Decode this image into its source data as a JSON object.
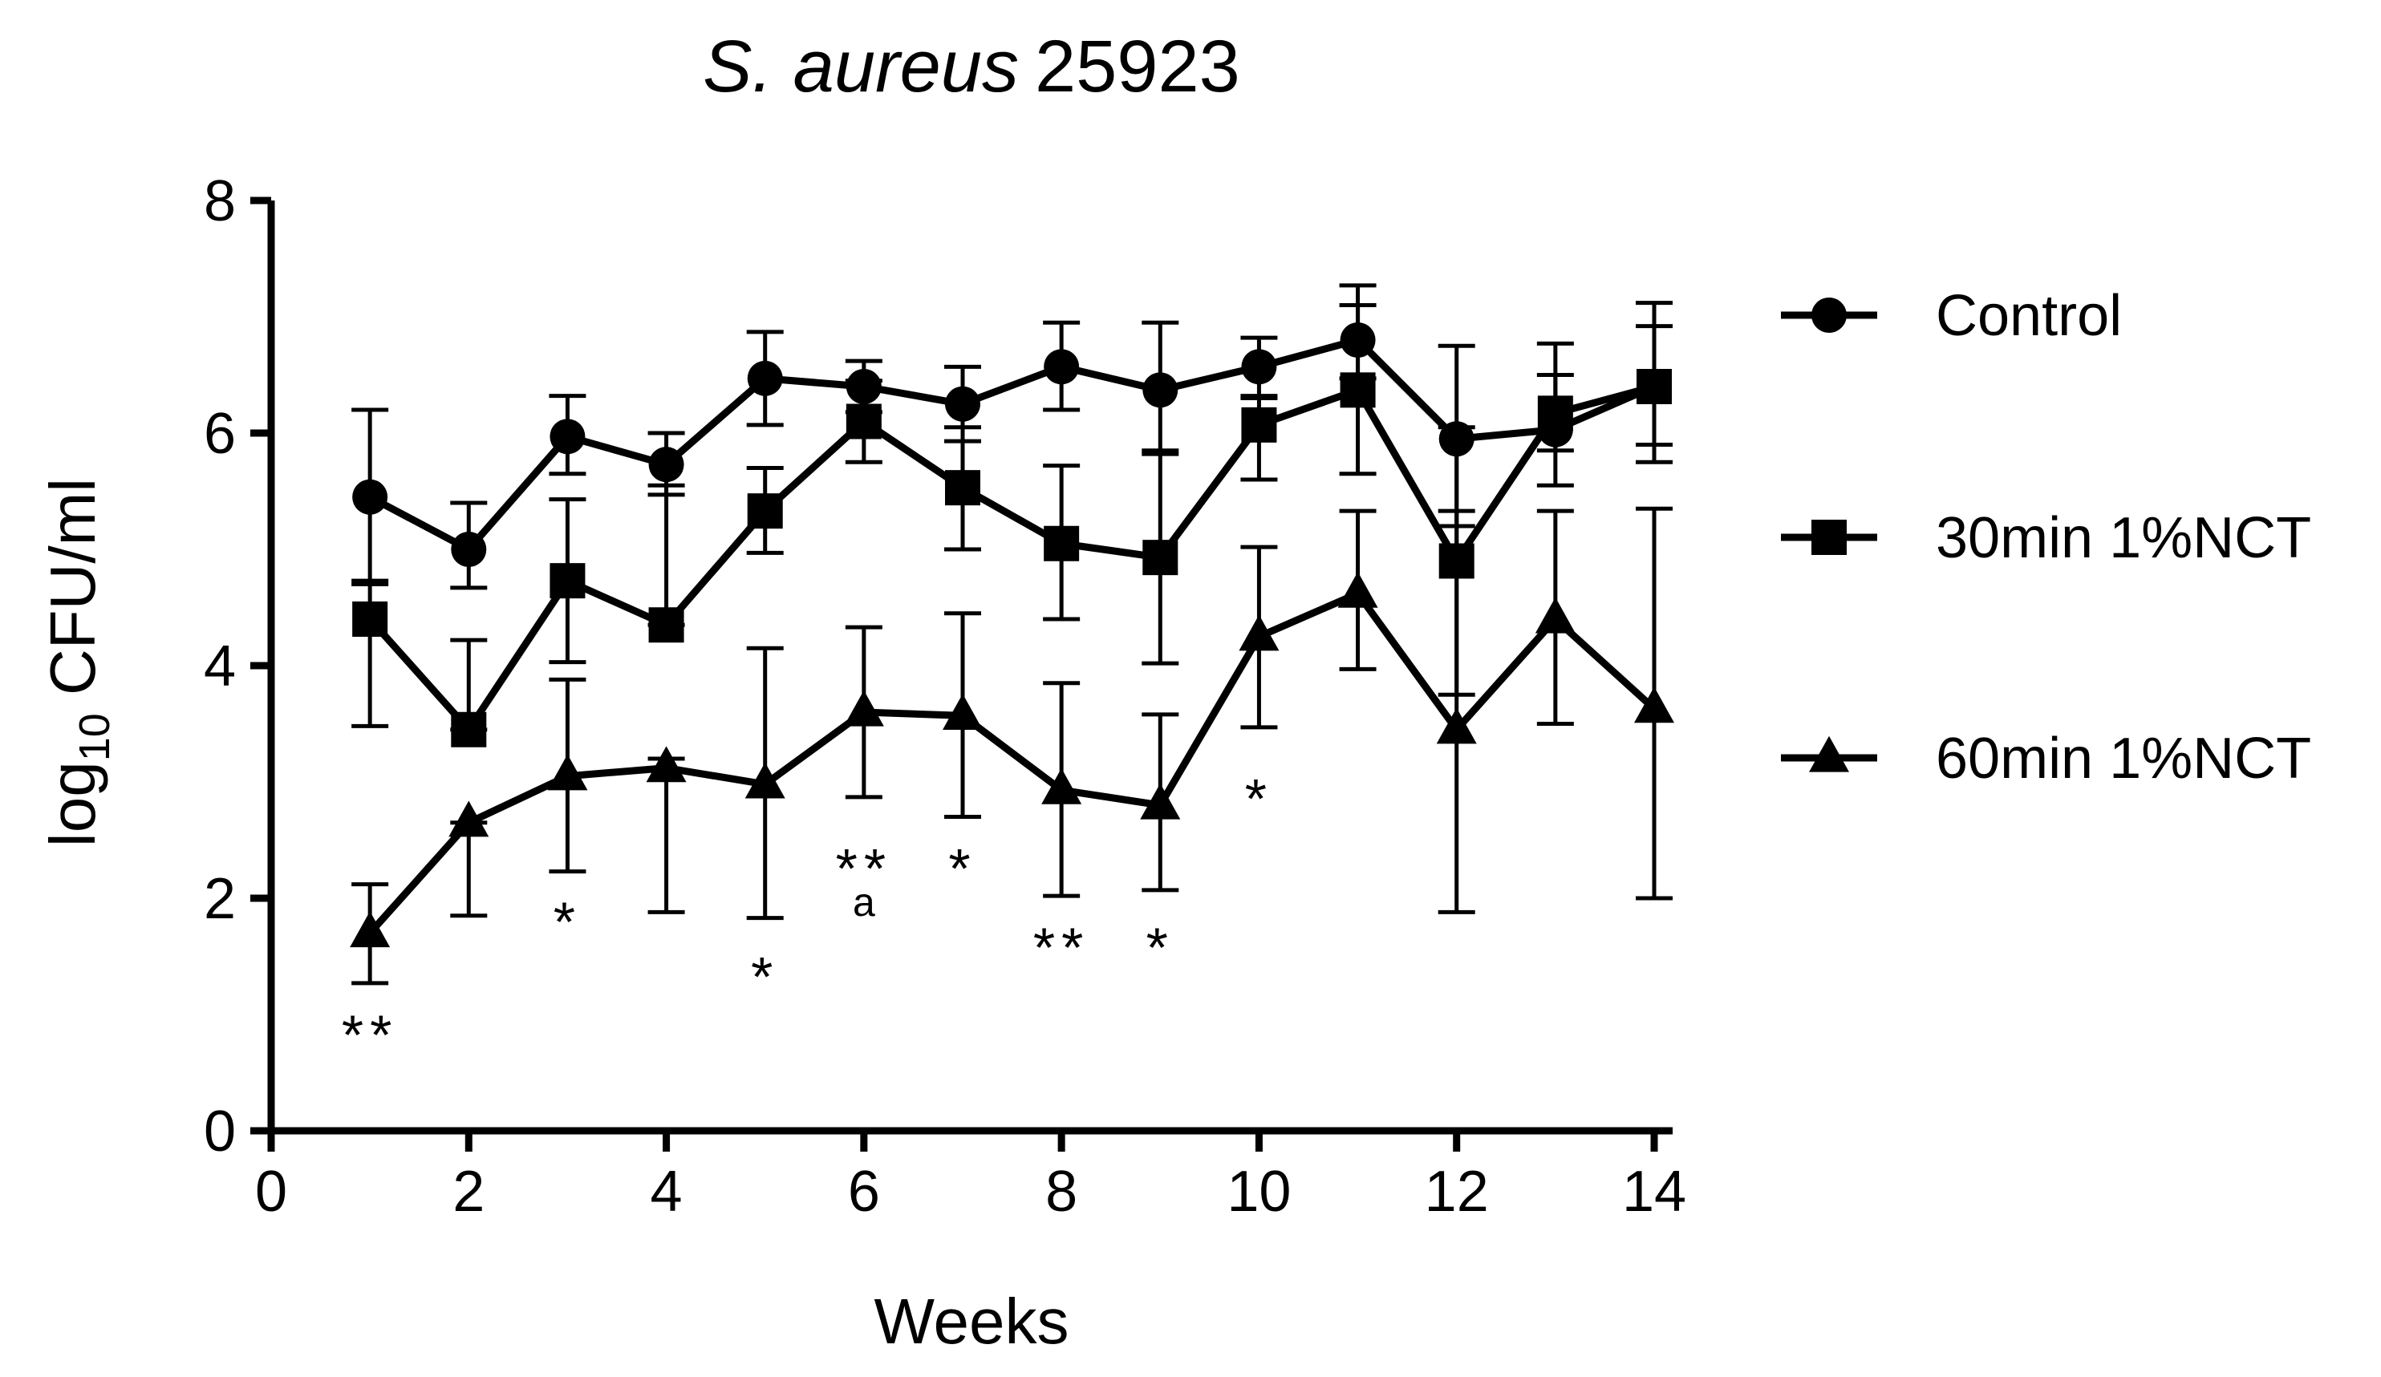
{
  "chart_data": {
    "type": "line",
    "title": "S. aureus 25923",
    "title_italic": "S. aureus",
    "title_rest": "25923",
    "xlabel": "Weeks",
    "ylabel": {
      "base": "log",
      "subscript": "10",
      "rest": " CFU/ml"
    },
    "xlim": [
      0,
      14
    ],
    "ylim": [
      0,
      8
    ],
    "xticks": [
      0,
      2,
      4,
      6,
      8,
      10,
      12,
      14
    ],
    "yticks": [
      0,
      2,
      4,
      6,
      8
    ],
    "grid": false,
    "legend_position": "right",
    "x": [
      1,
      2,
      3,
      4,
      5,
      6,
      7,
      8,
      9,
      10,
      11,
      12,
      13,
      14
    ],
    "series": [
      {
        "name": "Control",
        "marker": "circle",
        "values": [
          5.45,
          5.0,
          5.97,
          5.73,
          6.47,
          6.4,
          6.25,
          6.57,
          6.37,
          6.57,
          6.8,
          5.95,
          6.03,
          6.4
        ],
        "err_hi": [
          6.2,
          5.4,
          6.32,
          6.0,
          6.87,
          6.62,
          6.57,
          6.95,
          6.95,
          6.82,
          7.27,
          6.75,
          6.77,
          7.12
        ],
        "err_lo": [
          4.73,
          4.67,
          5.65,
          5.47,
          6.07,
          6.18,
          5.93,
          6.2,
          5.85,
          6.3,
          6.47,
          5.2,
          5.55,
          5.75
        ]
      },
      {
        "name": "30min 1%NCT",
        "marker": "square",
        "values": [
          4.4,
          3.45,
          4.73,
          4.35,
          5.33,
          6.1,
          5.53,
          5.05,
          4.93,
          6.07,
          6.37,
          4.9,
          6.17,
          6.4
        ],
        "err_hi": [
          4.7,
          4.22,
          5.43,
          5.55,
          5.7,
          6.45,
          6.05,
          5.72,
          5.82,
          6.32,
          7.1,
          6.05,
          6.5,
          6.92
        ],
        "err_lo": [
          3.48,
          3.45,
          4.03,
          4.35,
          4.97,
          5.75,
          5.0,
          4.4,
          4.02,
          5.6,
          5.65,
          3.75,
          5.85,
          5.9
        ]
      },
      {
        "name": "60min 1%NCT",
        "marker": "triangle",
        "values": [
          1.7,
          2.65,
          3.05,
          3.12,
          2.98,
          3.6,
          3.57,
          2.93,
          2.8,
          4.25,
          4.62,
          3.45,
          4.4,
          3.63
        ],
        "err_hi": [
          2.12,
          2.65,
          3.88,
          3.2,
          4.15,
          4.33,
          4.45,
          3.85,
          3.58,
          5.02,
          5.33,
          5.33,
          5.33,
          5.35
        ],
        "err_lo": [
          1.27,
          1.85,
          2.23,
          1.88,
          1.83,
          2.87,
          2.7,
          2.02,
          2.07,
          3.47,
          3.97,
          1.88,
          3.5,
          2.0
        ]
      }
    ],
    "annotations": [
      {
        "x": 1,
        "y": 0.95,
        "text": "**"
      },
      {
        "x": 3,
        "y": 1.92,
        "text": "*"
      },
      {
        "x": 5,
        "y": 1.45,
        "text": "*"
      },
      {
        "x": 6,
        "y": 2.38,
        "text": "**"
      },
      {
        "x": 6,
        "y": 1.96,
        "text": "a",
        "style": "letter"
      },
      {
        "x": 7,
        "y": 2.38,
        "text": "*"
      },
      {
        "x": 8,
        "y": 1.7,
        "text": "**"
      },
      {
        "x": 9,
        "y": 1.7,
        "text": "*"
      },
      {
        "x": 10,
        "y": 2.98,
        "text": "*"
      }
    ]
  }
}
